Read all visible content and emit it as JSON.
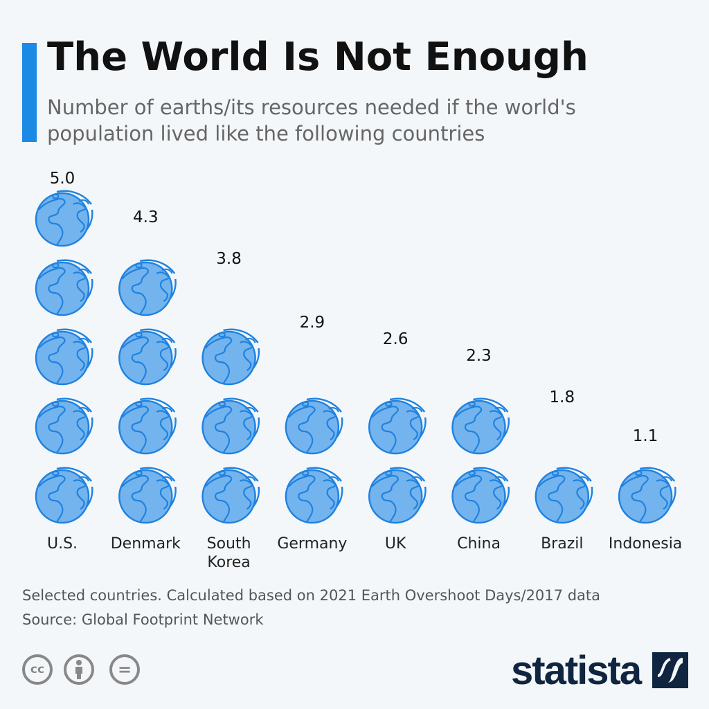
{
  "title": "The World Is Not Enough",
  "subtitle": "Number of earths/its resources needed if the world's population lived like the following countries",
  "chart_data": {
    "type": "pictograph",
    "unit_icon": "globe-icon",
    "categories": [
      "U.S.",
      "Denmark",
      "South Korea",
      "Germany",
      "UK",
      "China",
      "Brazil",
      "Indonesia"
    ],
    "category_lines": [
      [
        "U.S."
      ],
      [
        "Denmark"
      ],
      [
        "South",
        "Korea"
      ],
      [
        "Germany"
      ],
      [
        "UK"
      ],
      [
        "China"
      ],
      [
        "Brazil"
      ],
      [
        "Indonesia"
      ]
    ],
    "values": [
      5.0,
      4.3,
      3.8,
      2.9,
      2.6,
      2.3,
      1.8,
      1.1
    ],
    "labels": [
      "5.0",
      "4.3",
      "3.8",
      "2.9",
      "2.6",
      "2.3",
      "1.8",
      "1.1"
    ],
    "colors": {
      "globe_fill": "#74b4ee",
      "globe_stroke": "#1f82e0"
    }
  },
  "footer": {
    "note": "Selected countries. Calculated based on 2021 Earth Overshoot Days/2017 data",
    "source": "Source: Global Footprint Network"
  },
  "license_icons": [
    "cc",
    "by",
    "nd"
  ],
  "license_text": {
    "cc": "cc",
    "nd": "="
  },
  "brand": "statista",
  "colors": {
    "accent": "#1a8ae6",
    "brand": "#10253f",
    "background": "#f4f7fa"
  }
}
